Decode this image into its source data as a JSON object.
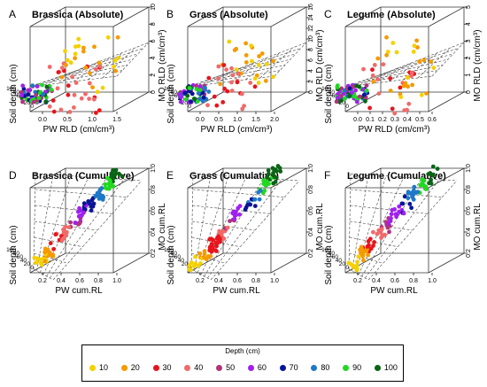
{
  "chart_data": [
    {
      "panel_letter": "A",
      "title": "Brassica (Absolute)",
      "type": "scatter",
      "xlabel": "PW RLD (cm/cm³)",
      "ylabel": "Soil depth (cm)",
      "zlabel": "MO RLD (cm/cm³)",
      "x_ticks": [
        "0.0",
        "0.5",
        "1.0",
        "1.5"
      ],
      "depth_ticks": [
        "100",
        "80",
        "60",
        "40",
        "20",
        "0"
      ],
      "z_ticks": [
        "0",
        "2",
        "4",
        "6",
        "8",
        "10"
      ],
      "xlim": [
        0,
        1.5
      ],
      "zlim": [
        0,
        10
      ],
      "depthlim": [
        0,
        100
      ]
    },
    {
      "panel_letter": "B",
      "title": "Grass (Absolute)",
      "type": "scatter",
      "xlabel": "PW RLD (cm/cm³)",
      "ylabel": "Soil depth (cm)",
      "zlabel": "MO RLD (cm/cm³)",
      "x_ticks": [
        "0.0",
        "0.5",
        "1.0",
        "1.5",
        "2.0"
      ],
      "depth_ticks": [
        "100",
        "80",
        "60",
        "40",
        "20",
        "0"
      ],
      "z_ticks": [
        "0",
        "2",
        "4",
        "6",
        "8",
        "10",
        "12",
        "14",
        "16"
      ],
      "xlim": [
        0,
        2.0
      ],
      "zlim": [
        0,
        16
      ],
      "depthlim": [
        0,
        100
      ]
    },
    {
      "panel_letter": "C",
      "title": "Legume (Absolute)",
      "type": "scatter",
      "xlabel": "PW RLD (cm/cm³)",
      "ylabel": "Soil depth (cm)",
      "zlabel": "MO RLD (cm/cm³)",
      "x_ticks": [
        "0.0",
        "0.1",
        "0.2",
        "0.3",
        "0.4",
        "0.5",
        "0.6"
      ],
      "depth_ticks": [
        "100",
        "80",
        "60",
        "40",
        "20",
        "0"
      ],
      "z_ticks": [
        "0",
        "1",
        "2",
        "3",
        "4",
        "5"
      ],
      "xlim": [
        0,
        0.6
      ],
      "zlim": [
        0,
        5
      ],
      "depthlim": [
        0,
        100
      ]
    },
    {
      "panel_letter": "D",
      "title": "Brassica (Cumulative)",
      "type": "scatter",
      "xlabel": "PW cum.RL",
      "ylabel": "Soil depth (cm)",
      "zlabel": "MO cum.RL",
      "x_ticks": [
        "0.2",
        "0.4",
        "0.6",
        "0.8",
        "1.0"
      ],
      "depth_ticks": [
        "100",
        "80",
        "60",
        "40",
        "20",
        "0"
      ],
      "z_ticks": [
        "0.2",
        "0.4",
        "0.6",
        "0.8",
        "1.0"
      ],
      "xlim": [
        0.2,
        1.0
      ],
      "zlim": [
        0.2,
        1.0
      ],
      "depthlim": [
        0,
        100
      ]
    },
    {
      "panel_letter": "E",
      "title": "Grass (Cumulative)",
      "type": "scatter",
      "xlabel": "PW cum.RL",
      "ylabel": "Soil depth (cm)",
      "zlabel": "MO cum.RL",
      "x_ticks": [
        "0.2",
        "0.4",
        "0.6",
        "0.8",
        "1.0"
      ],
      "depth_ticks": [
        "100",
        "80",
        "60",
        "40",
        "20",
        "0"
      ],
      "z_ticks": [
        "0.2",
        "0.4",
        "0.6",
        "0.8",
        "1.0"
      ],
      "xlim": [
        0.2,
        1.0
      ],
      "zlim": [
        0.2,
        1.0
      ],
      "depthlim": [
        0,
        100
      ]
    },
    {
      "panel_letter": "F",
      "title": "Legume (Cumulative)",
      "type": "scatter",
      "xlabel": "PW cum.RL",
      "ylabel": "Soil depth (cm)",
      "zlabel": "MO cum.RL",
      "x_ticks": [
        "0.2",
        "0.4",
        "0.6",
        "0.8",
        "1.0"
      ],
      "depth_ticks": [
        "100",
        "80",
        "60",
        "40",
        "20",
        "0"
      ],
      "z_ticks": [
        "0.2",
        "0.4",
        "0.6",
        "0.8",
        "1.0"
      ],
      "xlim": [
        0.2,
        1.0
      ],
      "zlim": [
        0.2,
        1.0
      ],
      "depthlim": [
        0,
        100
      ]
    }
  ],
  "legend": {
    "title": "Depth (cm)",
    "items": [
      {
        "label": "10",
        "color": "#f5d000"
      },
      {
        "label": "20",
        "color": "#f59a00"
      },
      {
        "label": "30",
        "color": "#e8141c"
      },
      {
        "label": "40",
        "color": "#f06a6a"
      },
      {
        "label": "50",
        "color": "#b0347a"
      },
      {
        "label": "60",
        "color": "#a020f0"
      },
      {
        "label": "70",
        "color": "#0a1496"
      },
      {
        "label": "80",
        "color": "#1e78c8"
      },
      {
        "label": "90",
        "color": "#22d822"
      },
      {
        "label": "100",
        "color": "#0a6414"
      }
    ]
  }
}
